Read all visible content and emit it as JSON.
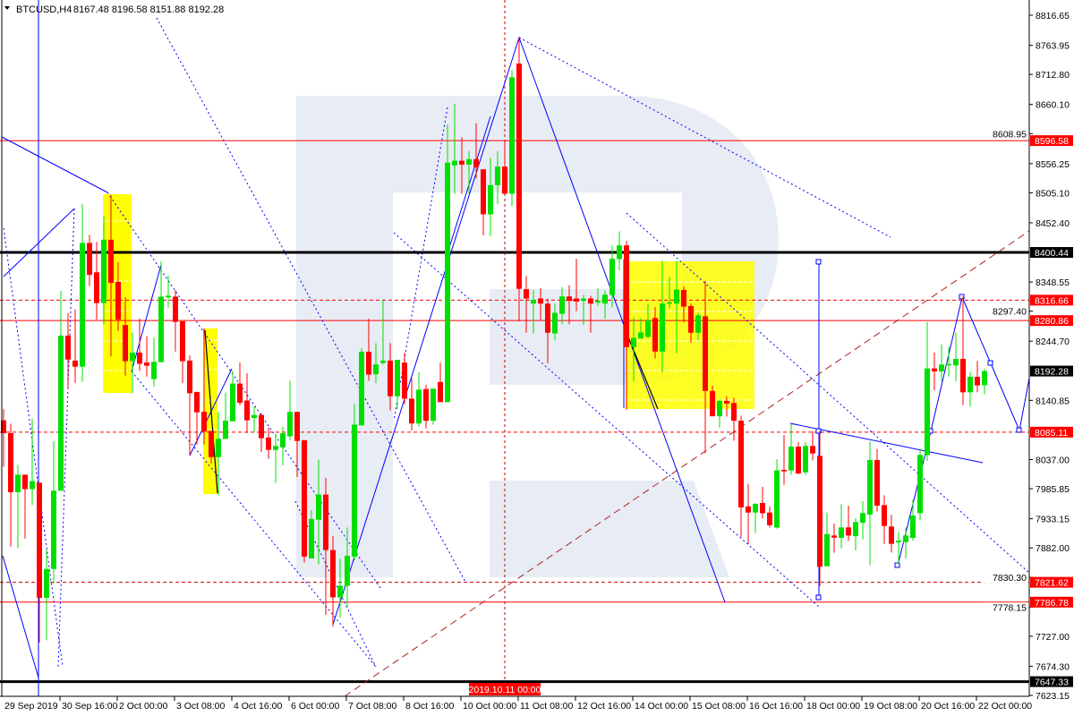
{
  "header": {
    "symbol": "BTCUSD,H4",
    "ohlc": "8167.48 8196.58 8151.88 8192.28"
  },
  "chart_data": {
    "type": "candlestick",
    "title": "BTCUSD,H4",
    "ylim": [
      7623.15,
      8816.65
    ],
    "grid": false,
    "colors": {
      "bull": "#00e000",
      "bear": "#ff0000",
      "background": "#ffffff",
      "watermark": "#e8ecf4",
      "zone": "#ffff00"
    },
    "y_ticks": [
      "8816.65",
      "8763.95",
      "8712.80",
      "8660.10",
      "8608.95",
      "8556.25",
      "8505.10",
      "8452.40",
      "8348.55",
      "8297.40",
      "8244.70",
      "8140.85",
      "8037.00",
      "7985.85",
      "7933.15",
      "7882.00",
      "7830.30",
      "7778.15",
      "7727.00",
      "7674.30",
      "7623.15"
    ],
    "x_ticks": [
      "29 Sep 2019",
      "30 Sep 16:00",
      "2 Oct 00:00",
      "3 Oct 08:00",
      "4 Oct 16:00",
      "6 Oct 00:00",
      "7 Oct 08:00",
      "8 Oct 16:00",
      "10 Oct 00:00",
      "11 Oct 08:00",
      "12 Oct 16:00",
      "14 Oct 00:00",
      "15 Oct 08:00",
      "16 Oct 16:00",
      "18 Oct 00:00",
      "19 Oct 08:00",
      "20 Oct 16:00",
      "22 Oct 00:00"
    ],
    "crosshair_time": "2019.10.11 00:00",
    "levels": [
      {
        "price": 8596.58,
        "label": "8596.58",
        "style": "solid",
        "color": "#ff0000"
      },
      {
        "price": 8400.44,
        "label": "8400.44",
        "style": "thick",
        "color": "#000000"
      },
      {
        "price": 8316.66,
        "label": "8316.66",
        "style": "dashed",
        "color": "#ff0000"
      },
      {
        "price": 8280.86,
        "label": "8280.86",
        "style": "solid",
        "color": "#ff0000"
      },
      {
        "price": 8085.11,
        "label": "8085.11",
        "style": "dashed",
        "color": "#ff0000"
      },
      {
        "price": 7821.62,
        "label": "7821.62",
        "style": "dashed",
        "color": "#cc0000"
      },
      {
        "price": 7786.78,
        "label": "7786.78",
        "style": "solid",
        "color": "#ff0000"
      },
      {
        "price": 7647.33,
        "label": "7647.33",
        "style": "thick",
        "color": "#000000"
      }
    ],
    "last_price": {
      "price": 8192.28,
      "label": "8192.28"
    },
    "candles_ohlc": [
      [
        8105.8,
        8125.4,
        8024.5,
        8083.4
      ],
      [
        8083.4,
        8100,
        7884.2,
        7979.6
      ],
      [
        7979.6,
        8027.3,
        7881.4,
        8010.4
      ],
      [
        8010.4,
        8010.4,
        7898.3,
        7985.2
      ],
      [
        7985.2,
        8108.6,
        7957.2,
        7999.2
      ],
      [
        7996.4,
        7996.4,
        7716,
        7794.5
      ],
      [
        7794.5,
        7878.6,
        7720,
        7845
      ],
      [
        7845,
        8069.3,
        7819.7,
        7982.4
      ],
      [
        7982.4,
        8333,
        7982.4,
        8254.4
      ],
      [
        8254.4,
        8293.7,
        8161.9,
        8212.4
      ],
      [
        8210.7,
        8300.4,
        8171.4,
        8200
      ],
      [
        8200,
        8485.5,
        8173.1,
        8417.1
      ],
      [
        8417.1,
        8431.1,
        8341.4,
        8361
      ],
      [
        8365.5,
        8418.8,
        8282.5,
        8311.6
      ],
      [
        8311.6,
        8463.1,
        8274.1,
        8422.7
      ],
      [
        8422.7,
        8501.2,
        8218,
        8347
      ],
      [
        8348.7,
        8383.4,
        8262.9,
        8282.5
      ],
      [
        8273,
        8321.7,
        8184.3,
        8209.6
      ],
      [
        8209.6,
        8260,
        8153.4,
        8224.7
      ],
      [
        8224.7,
        8284.2,
        8192.7,
        8205
      ],
      [
        8207.3,
        8253.3,
        8182.6,
        8201.7
      ],
      [
        8178.1,
        8251,
        8164.7,
        8208.4
      ],
      [
        8207.9,
        8384.6,
        8207.9,
        8322.9
      ],
      [
        8321.7,
        8359.9,
        8303.8,
        8324.6
      ],
      [
        8322.9,
        8334.6,
        8226.4,
        8278.5
      ],
      [
        8279.7,
        8279.7,
        8171.4,
        8209.6
      ],
      [
        8210.7,
        8219.7,
        8044.1,
        8153.4
      ],
      [
        8155.7,
        8155.7,
        8063.7,
        8119.8
      ],
      [
        8120.9,
        8266.8,
        8063.7,
        8086.2
      ],
      [
        8087.3,
        8087.3,
        8030,
        8041.3
      ],
      [
        8041.3,
        8120.9,
        7974,
        8073.8
      ],
      [
        8073.3,
        8154.6,
        8073.3,
        8105.2
      ],
      [
        8104.1,
        8192.7,
        8104.1,
        8170.3
      ],
      [
        8170.3,
        8207.3,
        8132.2,
        8136.6
      ],
      [
        8140.6,
        8188.2,
        8083.4,
        8105.8
      ],
      [
        8109.8,
        8130.2,
        8084.6,
        8115.2
      ],
      [
        8115.2,
        8118.6,
        8050.5,
        8074.4
      ],
      [
        8075.7,
        8092.8,
        8038.3,
        8054
      ],
      [
        8054,
        8082.5,
        7996.1,
        8060.8
      ],
      [
        8058.7,
        8094.8,
        8026.7,
        8083.2
      ],
      [
        8077.8,
        8175.2,
        8071,
        8120.7
      ],
      [
        8120.7,
        8120.7,
        8006.3,
        8069.6
      ],
      [
        8071,
        8071,
        7856.5,
        7866.7
      ],
      [
        7863.3,
        7948.4,
        7863.3,
        7932.7
      ],
      [
        7931.4,
        8037,
        7853.1,
        7975.6
      ],
      [
        7975.6,
        8004.9,
        7764.5,
        7878.2
      ],
      [
        7878.2,
        7902.8,
        7744.1,
        7795.2
      ],
      [
        7795.2,
        7863.3,
        7759.8,
        7815.6
      ],
      [
        7815.6,
        7917.7,
        7778.2,
        7868
      ],
      [
        7866.7,
        8134.3,
        7859.9,
        8098.2
      ],
      [
        8096.8,
        8232.4,
        8096.8,
        8226.2
      ],
      [
        8226.2,
        8284.1,
        8175.2,
        8186.1
      ],
      [
        8186.7,
        8241.2,
        8171.1,
        8203.8
      ],
      [
        8206.5,
        8318.2,
        8203.8,
        8210.6
      ],
      [
        8210.6,
        8241.2,
        8123.4,
        8148
      ],
      [
        8148,
        8212,
        8125.5,
        8212
      ],
      [
        8207.2,
        8224.2,
        8134.3,
        8143.8
      ],
      [
        8143.8,
        8180,
        8088,
        8100.3
      ],
      [
        8100.3,
        8190.1,
        8094.8,
        8159.5
      ],
      [
        8160.8,
        8168.3,
        8091.4,
        8105
      ],
      [
        8105,
        8161.5,
        8098.2,
        8161.5
      ],
      [
        8173.1,
        8207.2,
        8137.7,
        8137.7
      ],
      [
        8137.7,
        8624.6,
        8137.7,
        8557.9
      ],
      [
        8553.1,
        8661.4,
        8503.4,
        8561.3
      ],
      [
        8561.3,
        8602.2,
        8503.4,
        8554.5
      ],
      [
        8554.5,
        8578.3,
        8503.4,
        8564
      ],
      [
        8564,
        8627.3,
        8530.6,
        8549.7
      ],
      [
        8546.3,
        8546.3,
        8430.5,
        8467.3
      ],
      [
        8467.3,
        8566.1,
        8428.5,
        8518.4
      ],
      [
        8518.4,
        8578.3,
        8485,
        8551
      ],
      [
        8551,
        8595.3,
        8503.4,
        8503.4
      ],
      [
        8503.4,
        8720,
        8481.6,
        8707.7
      ],
      [
        8731.9,
        8777.4,
        8279.4,
        8336.5
      ],
      [
        8335.9,
        8359.3,
        8259.5,
        8319.6
      ],
      [
        8310.6,
        8334.6,
        8258.3,
        8317.2
      ],
      [
        8319.6,
        8337.7,
        8282.4,
        8310.6
      ],
      [
        8310.6,
        8319.6,
        8206,
        8259.5
      ],
      [
        8258.3,
        8310.6,
        8246.3,
        8294.4
      ],
      [
        8292.6,
        8339.5,
        8274.6,
        8323.2
      ],
      [
        8323.2,
        8342.5,
        8274.6,
        8315.4
      ],
      [
        8319.6,
        8389.4,
        8297.4,
        8314.2
      ],
      [
        8315.4,
        8325.6,
        8273.4,
        8319.6
      ],
      [
        8319.6,
        8324.4,
        8259.5,
        8310.6
      ],
      [
        8312.4,
        8337.7,
        8306.4,
        8315.4
      ],
      [
        8310.6,
        8333.4,
        8284.2,
        8326.2
      ],
      [
        8325.6,
        8412.8,
        8304.6,
        8389.4
      ],
      [
        8388.8,
        8437.4,
        8369.5,
        8412.8
      ],
      [
        8412.8,
        8420.6,
        8124.3,
        8234.3
      ],
      [
        8234.3,
        8286.6,
        8174.2,
        8250.5
      ],
      [
        8249.3,
        8285.4,
        8249.3,
        8260.1
      ],
      [
        8252.3,
        8310.6,
        8249.3,
        8281.2
      ],
      [
        8285.4,
        8304.6,
        8214.5,
        8226.5
      ],
      [
        8226.5,
        8385.8,
        8190.4,
        8310.6
      ],
      [
        8310.6,
        8357.5,
        8302.2,
        8313
      ],
      [
        8310.6,
        8385.8,
        8223.5,
        8335.3
      ],
      [
        8334.6,
        8340.7,
        8277.6,
        8305.2
      ],
      [
        8306.4,
        8310.6,
        8242.1,
        8259.5
      ],
      [
        8259.5,
        8294.4,
        8246.3,
        8290.2
      ],
      [
        8288.4,
        8350.3,
        8048,
        8157.4
      ],
      [
        8157.4,
        8166.4,
        8112.9,
        8112.9
      ],
      [
        8112.9,
        8142.3,
        8093.1,
        8140
      ],
      [
        8140,
        8148.3,
        8112.3,
        8135.2
      ],
      [
        8136.3,
        8145.3,
        8070.2,
        8105.1
      ],
      [
        8105.1,
        8114.1,
        7900.7,
        7953
      ],
      [
        7954.8,
        7993.9,
        7888.7,
        7944
      ],
      [
        7944,
        7960.8,
        7908,
        7959
      ],
      [
        7960.8,
        7989.1,
        7933.8,
        7942.8
      ],
      [
        7944,
        7954.8,
        7917.6,
        7921.8
      ],
      [
        7917.6,
        8037.8,
        7915.8,
        8018
      ],
      [
        8018.9,
        8080.1,
        7992.7,
        8016.3
      ],
      [
        8017.8,
        8100,
        8010,
        8059.7
      ],
      [
        8059.7,
        8067.6,
        8011,
        8012.6
      ],
      [
        8014.7,
        8067.6,
        8010,
        8060.8
      ],
      [
        8060.8,
        8087,
        8035.6,
        8047.7
      ],
      [
        8043.5,
        8087,
        7815,
        7848.8
      ],
      [
        7849.8,
        7944,
        7849.8,
        7906.3
      ],
      [
        7903.7,
        7924.6,
        7873.4,
        7900
      ],
      [
        7899.5,
        7958.7,
        7881.2,
        7917.9
      ],
      [
        7917.9,
        7956.1,
        7894.3,
        7903.7
      ],
      [
        7902.7,
        7934.1,
        7877.5,
        7927.3
      ],
      [
        7926.2,
        7963.9,
        7896.9,
        7943
      ],
      [
        7940.4,
        8068.6,
        7851.4,
        8036.1
      ],
      [
        8036.1,
        8055.5,
        7945.6,
        7956.1
      ],
      [
        7957.1,
        7974.4,
        7889.1,
        7920.5
      ],
      [
        7919.4,
        7939.8,
        7873.9,
        7889.1
      ],
      [
        7891.7,
        7910,
        7854,
        7894.8
      ],
      [
        7892.2,
        7917.9,
        7863.4,
        7903.7
      ],
      [
        7899.5,
        7966.5,
        7894.8,
        7938.8
      ],
      [
        7943,
        8055.5,
        7929.9,
        8045
      ],
      [
        8045,
        8278,
        8034.6,
        8196.9
      ],
      [
        8196.9,
        8224.6,
        8158.6,
        8191.6
      ],
      [
        8191.6,
        8238.7,
        8174.4,
        8203.7
      ],
      [
        8203.7,
        8235.1,
        8182.7,
        8204.7
      ],
      [
        8202.1,
        8259.7,
        8174.4,
        8213.6
      ],
      [
        8213.6,
        8322.5,
        8132.5,
        8155
      ],
      [
        8155,
        8190.1,
        8129.8,
        8182.2
      ],
      [
        8182.2,
        8210,
        8155,
        8167
      ],
      [
        8167.48,
        8196.58,
        8151.88,
        8192.28
      ]
    ]
  }
}
